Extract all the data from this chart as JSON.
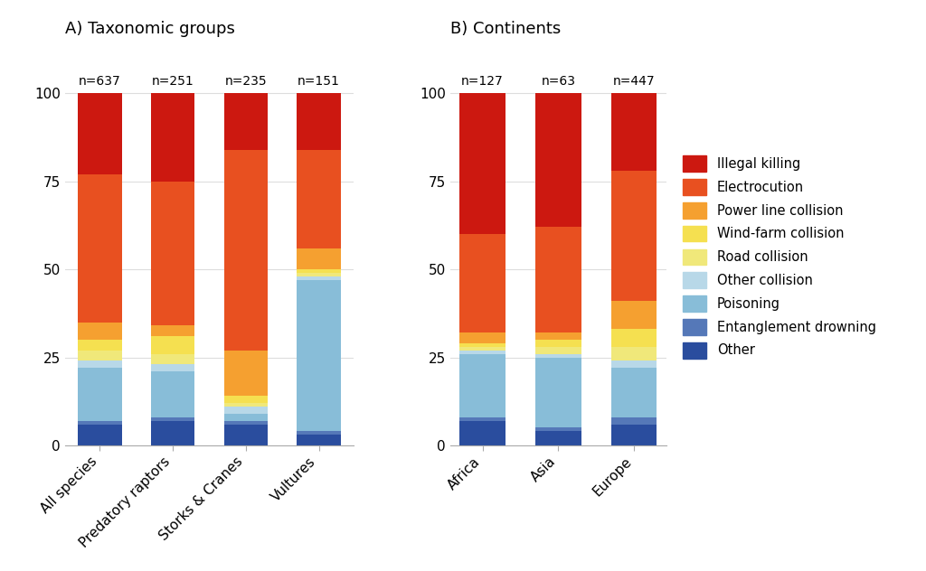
{
  "panel_A_title": "A) Taxonomic groups",
  "panel_B_title": "B) Continents",
  "categories_A": [
    "All species",
    "Predatory raptors",
    "Storks & Cranes",
    "Vultures"
  ],
  "n_labels_A": [
    "n=637",
    "n=251",
    "n=235",
    "n=151"
  ],
  "categories_B": [
    "Africa",
    "Asia",
    "Europe"
  ],
  "n_labels_B": [
    "n=127",
    "n=63",
    "n=447"
  ],
  "causes": [
    "Other",
    "Entanglement drowning",
    "Poisoning",
    "Other collision",
    "Road collision",
    "Wind-farm collision",
    "Power line collision",
    "Electrocution",
    "Illegal killing"
  ],
  "colors": [
    "#2a4d9e",
    "#5578b8",
    "#88bdd8",
    "#b8d8e8",
    "#f0e87a",
    "#f5e050",
    "#f5a030",
    "#e85020",
    "#cc1810"
  ],
  "data_A": {
    "All species": [
      6,
      1,
      15,
      2,
      3,
      3,
      5,
      42,
      23
    ],
    "Predatory raptors": [
      7,
      1,
      13,
      2,
      3,
      5,
      3,
      41,
      25
    ],
    "Storks & Cranes": [
      6,
      1,
      2,
      2,
      1,
      2,
      13,
      57,
      16
    ],
    "Vultures": [
      3,
      1,
      43,
      1,
      1,
      1,
      6,
      28,
      16
    ]
  },
  "data_B": {
    "Africa": [
      7,
      1,
      18,
      1,
      1,
      1,
      3,
      28,
      40
    ],
    "Asia": [
      4,
      1,
      20,
      1,
      2,
      2,
      2,
      30,
      38
    ],
    "Europe": [
      6,
      2,
      14,
      2,
      4,
      5,
      8,
      37,
      22
    ]
  },
  "ylim": [
    0,
    105
  ],
  "yticks": [
    0,
    25,
    50,
    75,
    100
  ],
  "background_color": "#ffffff",
  "legend_labels": [
    "Illegal killing",
    "Electrocution",
    "Power line collision",
    "Wind-farm collision",
    "Road collision",
    "Other collision",
    "Poisoning",
    "Entanglement drowning",
    "Other"
  ],
  "legend_colors": [
    "#cc1810",
    "#e85020",
    "#f5a030",
    "#f5e050",
    "#f0e87a",
    "#b8d8e8",
    "#88bdd8",
    "#5578b8",
    "#2a4d9e"
  ]
}
